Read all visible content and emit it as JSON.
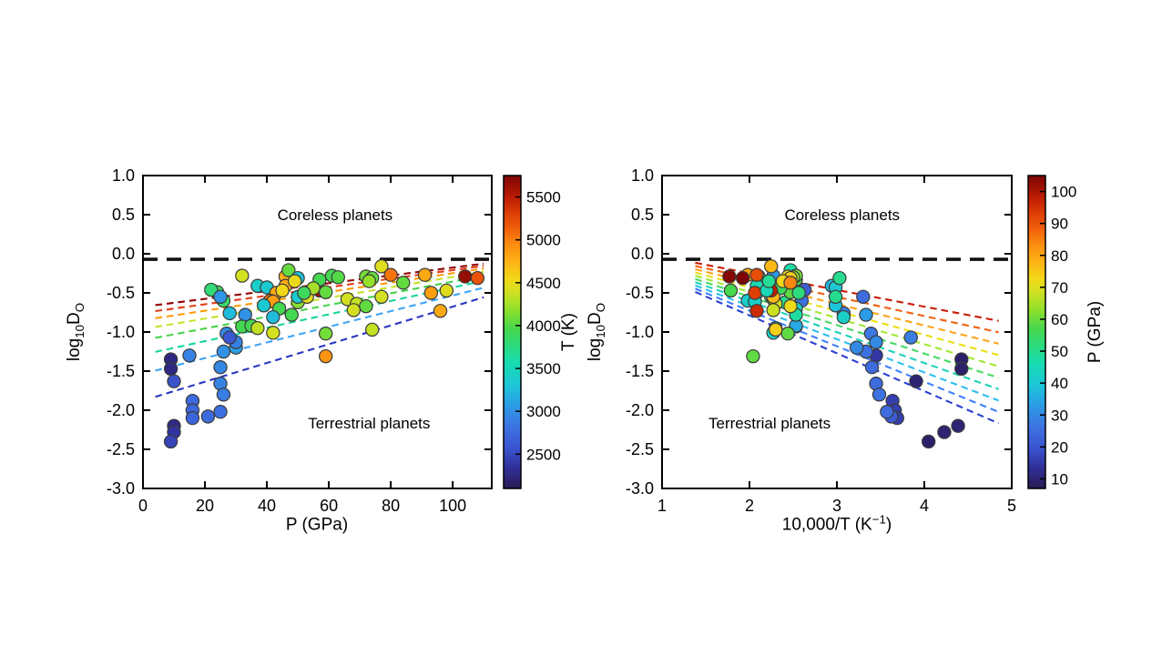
{
  "figure": {
    "background": "#ffffff",
    "text_color": "#000000",
    "spine_color": "#000000",
    "point_edge_color": "#3b3b3b"
  },
  "colormap_stops": [
    [
      0.0,
      "#2a1a54"
    ],
    [
      0.07,
      "#31319b"
    ],
    [
      0.13,
      "#3a55d0"
    ],
    [
      0.19,
      "#3e6fe1"
    ],
    [
      0.27,
      "#2b9fe6"
    ],
    [
      0.33,
      "#1cc6d8"
    ],
    [
      0.4,
      "#17dcb0"
    ],
    [
      0.46,
      "#2edb7b"
    ],
    [
      0.51,
      "#46d74e"
    ],
    [
      0.57,
      "#8ee02c"
    ],
    [
      0.63,
      "#d3e021"
    ],
    [
      0.67,
      "#f2d818"
    ],
    [
      0.72,
      "#fdb515"
    ],
    [
      0.78,
      "#fb8c10"
    ],
    [
      0.83,
      "#f0600a"
    ],
    [
      0.88,
      "#dd3d06"
    ],
    [
      0.93,
      "#bd1d04"
    ],
    [
      1.0,
      "#7c0403"
    ]
  ],
  "boundary_line": {
    "y": -0.07,
    "color": "#111111"
  },
  "chart_data": {
    "type": "scatter",
    "point_fields": [
      "P_GPa",
      "T_K",
      "log10_DO"
    ],
    "points": [
      [
        9,
        2260,
        -1.35
      ],
      [
        9,
        2260,
        -1.47
      ],
      [
        10,
        2560,
        -1.63
      ],
      [
        10,
        2280,
        -2.2
      ],
      [
        10,
        2365,
        -2.28
      ],
      [
        9,
        2470,
        -2.4
      ],
      [
        15,
        2900,
        -1.3
      ],
      [
        16,
        2750,
        -1.88
      ],
      [
        16,
        2730,
        -2.0
      ],
      [
        16,
        2710,
        -2.1
      ],
      [
        21,
        2760,
        -2.08
      ],
      [
        25,
        2800,
        -2.02
      ],
      [
        25,
        2940,
        -1.45
      ],
      [
        25,
        2900,
        -1.66
      ],
      [
        26,
        2870,
        -1.8
      ],
      [
        26,
        3000,
        -1.25
      ],
      [
        30,
        3100,
        -1.2
      ],
      [
        24,
        3900,
        -0.49
      ],
      [
        26,
        3850,
        -0.6
      ],
      [
        28,
        3250,
        -0.76
      ],
      [
        33,
        3000,
        -0.78
      ],
      [
        27,
        2950,
        -1.02
      ],
      [
        30,
        2900,
        -1.13
      ],
      [
        32,
        4400,
        -0.28
      ],
      [
        32,
        3950,
        -0.93
      ],
      [
        35,
        3950,
        -0.92
      ],
      [
        37,
        4350,
        -0.95
      ],
      [
        42,
        4400,
        -1.01
      ],
      [
        37,
        3400,
        -0.41
      ],
      [
        40,
        3350,
        -0.43
      ],
      [
        43,
        4800,
        -0.5
      ],
      [
        41,
        5050,
        -0.6
      ],
      [
        42,
        4850,
        -0.61
      ],
      [
        39,
        3350,
        -0.66
      ],
      [
        44,
        3950,
        -0.7
      ],
      [
        42,
        3250,
        -0.81
      ],
      [
        46,
        4750,
        -0.29
      ],
      [
        46,
        4800,
        -0.41
      ],
      [
        47,
        4050,
        -0.21
      ],
      [
        50,
        3300,
        -0.31
      ],
      [
        48,
        3950,
        -0.78
      ],
      [
        50,
        4150,
        -0.62
      ],
      [
        50,
        3350,
        -0.55
      ],
      [
        57,
        5600,
        -0.47
      ],
      [
        57,
        3950,
        -0.33
      ],
      [
        59,
        4050,
        -0.49
      ],
      [
        61,
        3950,
        -0.28
      ],
      [
        63,
        4000,
        -0.3
      ],
      [
        59,
        4100,
        -1.02
      ],
      [
        59,
        4900,
        -1.31
      ],
      [
        53,
        4450,
        -0.55
      ],
      [
        55,
        4250,
        -0.44
      ],
      [
        66,
        4400,
        -0.58
      ],
      [
        69,
        4350,
        -0.64
      ],
      [
        68,
        4400,
        -0.72
      ],
      [
        72,
        4050,
        -0.67
      ],
      [
        74,
        4350,
        -0.97
      ],
      [
        77,
        4450,
        -0.16
      ],
      [
        72,
        4100,
        -0.29
      ],
      [
        74,
        4050,
        -0.31
      ],
      [
        73,
        4200,
        -0.35
      ],
      [
        80,
        5050,
        -0.27
      ],
      [
        84,
        4050,
        -0.37
      ],
      [
        77,
        4400,
        -0.55
      ],
      [
        91,
        4800,
        -0.27
      ],
      [
        93,
        4850,
        -0.5
      ],
      [
        98,
        4450,
        -0.47
      ],
      [
        96,
        4800,
        -0.73
      ],
      [
        104,
        5650,
        -0.29
      ],
      [
        108,
        5200,
        -0.31
      ],
      [
        22,
        3800,
        -0.46
      ],
      [
        25,
        3030,
        -0.55
      ],
      [
        28,
        2600,
        -1.07
      ],
      [
        45,
        4550,
        -0.47
      ],
      [
        49,
        4500,
        -0.35
      ],
      [
        52,
        3900,
        -0.5
      ]
    ],
    "fit_model": {
      "formula": "log10(D_O) = a + (b + c*P_GPa)*(10000/T_K)",
      "a": 0.18,
      "b": -0.514,
      "c": 0.003
    },
    "panels": [
      {
        "xlabel_parts": {
          "main": "P (GPa)",
          "sup": "",
          "end": ""
        },
        "ylabel_parts": {
          "base": "log",
          "sub": "10",
          "sym": "D",
          "sub2": "O"
        },
        "xlim": [
          0,
          112.6
        ],
        "ylim": [
          -3,
          1
        ],
        "xticks": [
          0,
          20,
          40,
          60,
          80,
          100
        ],
        "yticks": [
          1.0,
          0.5,
          0.0,
          -0.5,
          -1.0,
          -1.5,
          -2.0,
          -2.5,
          -3.0
        ],
        "x_source": "P",
        "color_source": "T",
        "colorbar": {
          "title": "T (K)",
          "range": [
            2100,
            5750
          ],
          "ticks": [
            2500,
            3000,
            3500,
            4000,
            4500,
            5000,
            5500
          ]
        },
        "trend_lines": {
          "iso_field": "T_K",
          "values": [
            6000,
            5500,
            5000,
            4500,
            4000,
            3500,
            3000,
            2500
          ],
          "colors": [
            "#8f0000",
            "#e23d16",
            "#ff9800",
            "#c8e22b",
            "#46d348",
            "#17d5a0",
            "#3fa5f5",
            "#2b36c3"
          ],
          "x_span": [
            4,
            110
          ]
        },
        "annotations": [
          {
            "text": "Coreless planets",
            "x": 62,
            "y": 0.49
          },
          {
            "text": "Terrestrial planets",
            "x": 73,
            "y": -2.17
          }
        ]
      },
      {
        "xlabel_parts": {
          "main": "10,000/T (K",
          "sup": "−1",
          "end": ")"
        },
        "ylabel_parts": {
          "base": "log",
          "sub": "10",
          "sym": "D",
          "sub2": "O"
        },
        "xlim": [
          1,
          5
        ],
        "ylim": [
          -3,
          1
        ],
        "xticks": [
          1,
          2,
          3,
          4,
          5
        ],
        "yticks": [
          1.0,
          0.5,
          0.0,
          -0.5,
          -1.0,
          -1.5,
          -2.0,
          -2.5,
          -3.0
        ],
        "x_source": "10000/T",
        "color_source": "P",
        "colorbar": {
          "title": "P (GPa)",
          "range": [
            7,
            105
          ],
          "ticks": [
            10,
            20,
            30,
            40,
            50,
            60,
            70,
            80,
            90,
            100
          ]
        },
        "trend_lines": {
          "iso_field": "P_GPa",
          "values": [
            100,
            90,
            80,
            70,
            60,
            50,
            40,
            30,
            20,
            10
          ],
          "colors": [
            "#c81c04",
            "#f26010",
            "#ffa51c",
            "#ecdf16",
            "#a2e832",
            "#48da64",
            "#1bd3b9",
            "#2fbdf2",
            "#3f7fff",
            "#2b3fd0"
          ],
          "x_span": [
            1.38,
            4.85
          ]
        },
        "annotations": [
          {
            "text": "Coreless planets",
            "x": 3.06,
            "y": 0.49
          },
          {
            "text": "Terrestrial planets",
            "x": 2.23,
            "y": -2.17
          }
        ]
      }
    ]
  }
}
